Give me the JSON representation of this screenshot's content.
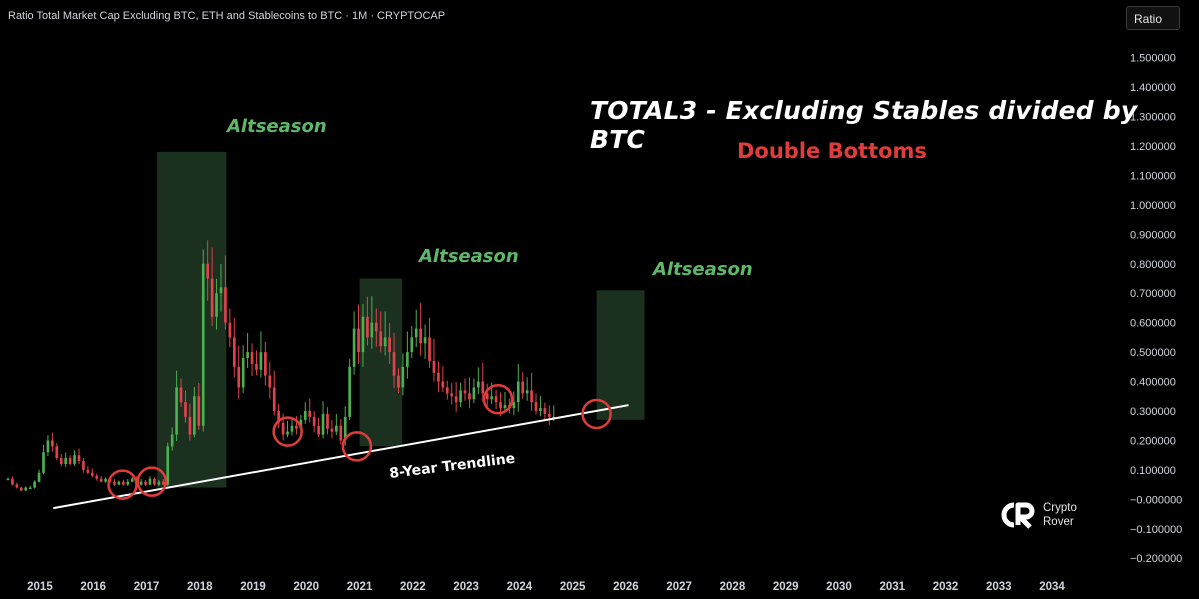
{
  "header": {
    "title": "Ratio Total Market Cap Excluding BTC, ETH and Stablecoins to BTC · 1M · CRYPTOCAP"
  },
  "scale_button": {
    "label": "Ratio"
  },
  "annotations": {
    "main_title": "TOTAL3 - Excluding Stables divided by BTC",
    "subtitle": "Double Bottoms",
    "altseason_label": "Altseason",
    "trendline_label": "8-Year Trendline"
  },
  "logo": {
    "line1": "Crypto",
    "line2": "Rover"
  },
  "colors": {
    "background": "#000000",
    "up_candle": "#4caf50",
    "down_candle": "#e0424f",
    "altseason_zone": "#1c3320",
    "altseason_text": "#5fb86a",
    "circle": "#e03c3c",
    "trendline": "#ffffff",
    "subtitle": "#e03c3c"
  },
  "chart_data": {
    "type": "candlestick",
    "y_axis": {
      "ylim": [
        -0.24,
        1.56
      ],
      "ticks": [
        "1.500000",
        "1.400000",
        "1.300000",
        "1.200000",
        "1.100000",
        "1.000000",
        "0.900000",
        "0.800000",
        "0.700000",
        "0.600000",
        "0.500000",
        "0.400000",
        "0.300000",
        "0.200000",
        "0.100000",
        "−0.000000",
        "−0.100000",
        "−0.200000"
      ],
      "tick_values": [
        1.5,
        1.4,
        1.3,
        1.2,
        1.1,
        1.0,
        0.9,
        0.8,
        0.7,
        0.6,
        0.5,
        0.4,
        0.3,
        0.2,
        0.1,
        0.0,
        -0.1,
        -0.2
      ]
    },
    "x_axis": {
      "xlim": [
        2014.25,
        2034.9
      ],
      "ticks": [
        "2015",
        "2016",
        "2017",
        "2018",
        "2019",
        "2020",
        "2021",
        "2022",
        "2023",
        "2024",
        "2025",
        "2026",
        "2027",
        "2028",
        "2029",
        "2030",
        "2031",
        "2032",
        "2033",
        "2034"
      ],
      "tick_values": [
        2015,
        2016,
        2017,
        2018,
        2019,
        2020,
        2021,
        2022,
        2023,
        2024,
        2025,
        2026,
        2027,
        2028,
        2029,
        2030,
        2031,
        2032,
        2033,
        2034
      ]
    },
    "close_series": {
      "start": 2014.4,
      "step_years": 0.0833,
      "values": [
        0.07,
        0.05,
        0.04,
        0.03,
        0.04,
        0.04,
        0.06,
        0.09,
        0.16,
        0.2,
        0.18,
        0.14,
        0.12,
        0.14,
        0.12,
        0.15,
        0.13,
        0.1,
        0.09,
        0.08,
        0.07,
        0.06,
        0.07,
        0.06,
        0.05,
        0.06,
        0.05,
        0.06,
        0.07,
        0.05,
        0.06,
        0.05,
        0.07,
        0.05,
        0.06,
        0.05,
        0.18,
        0.22,
        0.38,
        0.33,
        0.28,
        0.22,
        0.35,
        0.25,
        0.8,
        0.75,
        0.62,
        0.7,
        0.72,
        0.6,
        0.55,
        0.45,
        0.38,
        0.48,
        0.5,
        0.46,
        0.44,
        0.5,
        0.42,
        0.38,
        0.3,
        0.26,
        0.22,
        0.23,
        0.25,
        0.24,
        0.27,
        0.3,
        0.28,
        0.25,
        0.22,
        0.29,
        0.24,
        0.23,
        0.25,
        0.2,
        0.28,
        0.45,
        0.58,
        0.5,
        0.62,
        0.55,
        0.6,
        0.57,
        0.52,
        0.55,
        0.5,
        0.42,
        0.38,
        0.45,
        0.5,
        0.55,
        0.58,
        0.53,
        0.55,
        0.47,
        0.43,
        0.4,
        0.38,
        0.36,
        0.35,
        0.33,
        0.37,
        0.36,
        0.34,
        0.38,
        0.4,
        0.36,
        0.34,
        0.35,
        0.33,
        0.31,
        0.32,
        0.31,
        0.33,
        0.4,
        0.36,
        0.37,
        0.33,
        0.3,
        0.31,
        0.29,
        0.28,
        0.28
      ]
    },
    "altseason_zones": [
      {
        "x0": 2017.2,
        "x1": 2018.5,
        "y0": 0.04,
        "y1": 1.18
      },
      {
        "x0": 2021.0,
        "x1": 2021.8,
        "y0": 0.18,
        "y1": 0.75
      },
      {
        "x0": 2025.45,
        "x1": 2026.35,
        "y0": 0.27,
        "y1": 0.71
      }
    ],
    "double_bottom_circles": [
      {
        "x": 2016.55,
        "y": 0.05
      },
      {
        "x": 2017.1,
        "y": 0.06
      },
      {
        "x": 2019.65,
        "y": 0.23
      },
      {
        "x": 2020.95,
        "y": 0.18
      },
      {
        "x": 2023.6,
        "y": 0.34
      },
      {
        "x": 2025.45,
        "y": 0.29
      }
    ],
    "trendline": {
      "x0": 2015.25,
      "y0": -0.03,
      "x1": 2026.05,
      "y1": 0.32
    }
  }
}
